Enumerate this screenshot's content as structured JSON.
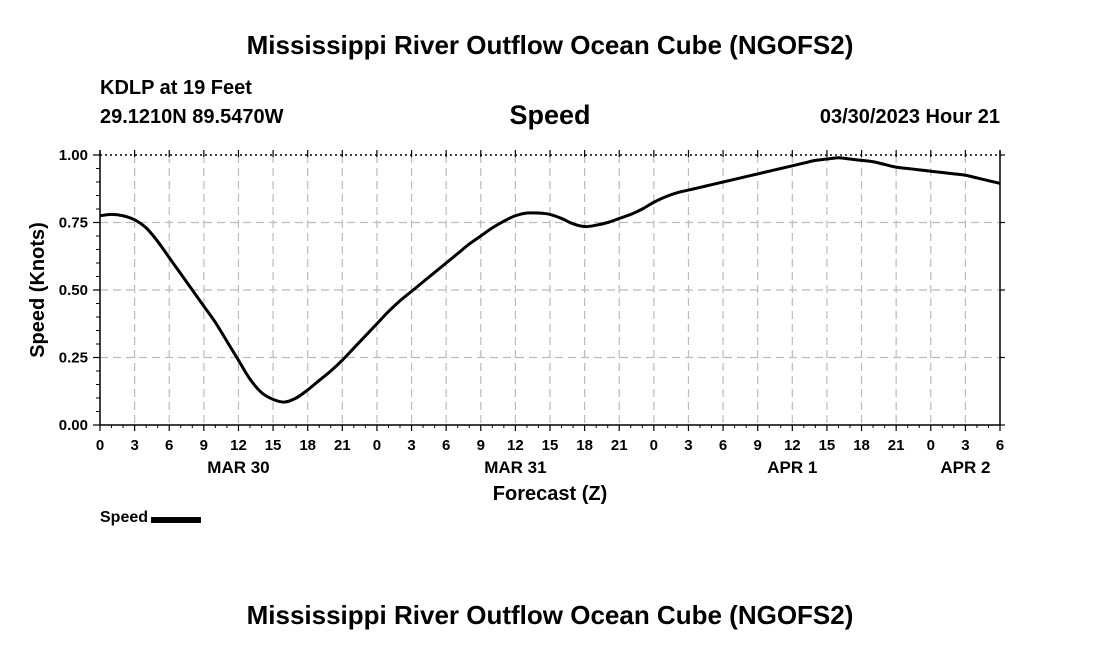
{
  "header": {
    "title": "Mississippi River Outflow Ocean Cube (NGOFS2)",
    "station": "KDLP at 19 Feet",
    "coords": "29.1210N  89.5470W",
    "subtitle": "Speed",
    "timestamp": "03/30/2023 Hour 21"
  },
  "footer": {
    "title": "Mississippi River Outflow Ocean Cube (NGOFS2)"
  },
  "legend": {
    "label": "Speed"
  },
  "colors": {
    "line": "#000000",
    "grid": "#bbbbbb"
  },
  "chart_data": {
    "type": "line",
    "xlabel": "Forecast (Z)",
    "ylabel": "Speed (Knots)",
    "ylim": [
      0,
      1
    ],
    "yticks": [
      "0.00",
      "0.25",
      "0.50",
      "0.75",
      "1.00"
    ],
    "ytick_values": [
      0,
      0.25,
      0.5,
      0.75,
      1.0
    ],
    "xlim": [
      0,
      78
    ],
    "xtick_labels": [
      "0",
      "3",
      "6",
      "9",
      "12",
      "15",
      "18",
      "21",
      "0",
      "3",
      "6",
      "9",
      "12",
      "15",
      "18",
      "21",
      "0",
      "3",
      "6",
      "9",
      "12",
      "15",
      "18",
      "21",
      "0",
      "3",
      "6"
    ],
    "date_labels": [
      {
        "label": "MAR 30",
        "x": 12
      },
      {
        "label": "MAR 31",
        "x": 36
      },
      {
        "label": "APR 1",
        "x": 60
      },
      {
        "label": "APR 2",
        "x": 75
      }
    ],
    "grid": true,
    "legend_position": "bottom-left",
    "series": [
      {
        "name": "Speed",
        "x": [
          0,
          1,
          2,
          3,
          4,
          5,
          6,
          7,
          8,
          9,
          10,
          11,
          12,
          13,
          14,
          15,
          16,
          17,
          18,
          19,
          20,
          21,
          22,
          23,
          24,
          25,
          26,
          27,
          28,
          29,
          30,
          31,
          32,
          33,
          34,
          35,
          36,
          37,
          38,
          39,
          40,
          41,
          42,
          43,
          44,
          45,
          46,
          47,
          48,
          49,
          50,
          51,
          52,
          53,
          54,
          55,
          56,
          57,
          58,
          59,
          60,
          61,
          62,
          63,
          64,
          65,
          66,
          67,
          68,
          69,
          70,
          71,
          72,
          73,
          74,
          75,
          76,
          77,
          78
        ],
        "values": [
          0.775,
          0.78,
          0.775,
          0.76,
          0.73,
          0.68,
          0.62,
          0.56,
          0.5,
          0.44,
          0.38,
          0.31,
          0.24,
          0.17,
          0.12,
          0.095,
          0.085,
          0.1,
          0.13,
          0.165,
          0.2,
          0.24,
          0.285,
          0.33,
          0.375,
          0.42,
          0.46,
          0.495,
          0.53,
          0.565,
          0.6,
          0.635,
          0.67,
          0.7,
          0.73,
          0.755,
          0.775,
          0.785,
          0.785,
          0.78,
          0.765,
          0.745,
          0.735,
          0.74,
          0.75,
          0.765,
          0.78,
          0.8,
          0.825,
          0.845,
          0.86,
          0.87,
          0.88,
          0.89,
          0.9,
          0.91,
          0.92,
          0.93,
          0.94,
          0.95,
          0.96,
          0.97,
          0.98,
          0.985,
          0.99,
          0.985,
          0.98,
          0.975,
          0.965,
          0.955,
          0.95,
          0.945,
          0.94,
          0.935,
          0.93,
          0.925,
          0.915,
          0.905,
          0.895
        ]
      }
    ]
  }
}
